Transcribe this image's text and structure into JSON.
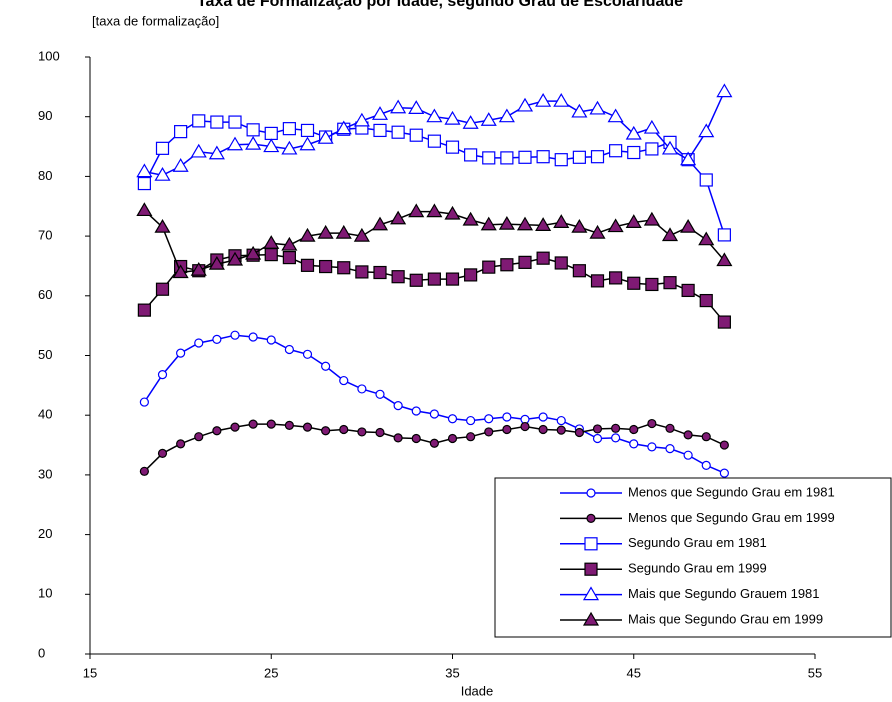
{
  "chart_data": {
    "type": "line",
    "title": "Taxa de Formalização por Idade, segundo Grau de Escolaridade",
    "subtitle": "[taxa de formalização]",
    "x_label": "Idade",
    "x": [
      18,
      19,
      20,
      21,
      22,
      23,
      24,
      25,
      26,
      27,
      28,
      29,
      30,
      31,
      32,
      33,
      34,
      35,
      36,
      37,
      38,
      39,
      40,
      41,
      42,
      43,
      44,
      45,
      46,
      47,
      48,
      49,
      50
    ],
    "xlim": [
      15,
      55
    ],
    "xticks": [
      15,
      25,
      35,
      45,
      55
    ],
    "ylim": [
      0,
      100
    ],
    "yticks": [
      0,
      10,
      20,
      30,
      40,
      50,
      60,
      70,
      80,
      90,
      100
    ],
    "legend": "bottom-right",
    "series": [
      {
        "name": "Menos que Segundo Grau em 1981",
        "color": "#0000ff",
        "marker": "circle",
        "fill": "#ffffff",
        "values": [
          42.2,
          46.8,
          50.4,
          52.1,
          52.7,
          53.4,
          53.1,
          52.6,
          51,
          50.2,
          48.2,
          45.8,
          44.4,
          43.5,
          41.6,
          40.7,
          40.2,
          39.4,
          39.1,
          39.4,
          39.7,
          39.3,
          39.7,
          39.1,
          37.7,
          36.1,
          36.2,
          35.2,
          34.7,
          34.4,
          33.3,
          31.6,
          30.3
        ]
      },
      {
        "name": "Menos que Segundo Grau em 1999",
        "color": "#000000",
        "marker": "circle",
        "fill": "#7f1a74",
        "values": [
          30.6,
          33.6,
          35.2,
          36.4,
          37.4,
          38,
          38.5,
          38.5,
          38.3,
          38,
          37.4,
          37.6,
          37.2,
          37.1,
          36.2,
          36.1,
          35.3,
          36.1,
          36.4,
          37.2,
          37.6,
          38.1,
          37.6,
          37.5,
          37.1,
          37.7,
          37.8,
          37.6,
          38.6,
          37.8,
          36.7,
          36.4,
          35
        ]
      },
      {
        "name": "Segundo Grau em 1981",
        "color": "#0000ff",
        "marker": "square",
        "fill": "#ffffff",
        "values": [
          78.8,
          84.7,
          87.5,
          89.3,
          89.1,
          89.1,
          87.8,
          87.2,
          88,
          87.7,
          86.6,
          87.9,
          88.1,
          87.7,
          87.4,
          86.9,
          85.9,
          84.9,
          83.6,
          83.1,
          83.1,
          83.2,
          83.3,
          82.8,
          83.2,
          83.3,
          84.3,
          84,
          84.6,
          85.7,
          82.8,
          79.4,
          70.2
        ]
      },
      {
        "name": "Segundo Grau em 1999",
        "color": "#000000",
        "marker": "square",
        "fill": "#7f1a74",
        "values": [
          57.6,
          61.1,
          64.9,
          64.2,
          66,
          66.7,
          66.8,
          66.9,
          66.4,
          65.1,
          64.9,
          64.7,
          64,
          63.9,
          63.2,
          62.6,
          62.8,
          62.8,
          63.5,
          64.8,
          65.2,
          65.6,
          66.3,
          65.5,
          64.2,
          62.5,
          63,
          62.1,
          61.9,
          62.2,
          60.9,
          59.2,
          55.6
        ]
      },
      {
        "name": "Mais que Segundo Grauem 1981",
        "color": "#0000ff",
        "marker": "triangle",
        "fill": "#ffffff",
        "values": [
          80.8,
          80.2,
          81.7,
          84.1,
          83.8,
          85.3,
          85.4,
          85,
          84.6,
          85.3,
          86.4,
          88,
          89.3,
          90.4,
          91.5,
          91.4,
          90,
          89.6,
          88.9,
          89.4,
          90,
          91.8,
          92.6,
          92.6,
          90.8,
          91.3,
          90,
          87.1,
          88.1,
          84.6,
          82.8,
          87.5,
          94.2
        ]
      },
      {
        "name": "Mais que Segundo Grau em 1999",
        "color": "#000000",
        "marker": "triangle",
        "fill": "#7f1a74",
        "values": [
          74.3,
          71.5,
          63.9,
          64.3,
          65.3,
          66,
          67,
          68.8,
          68.5,
          70,
          70.5,
          70.5,
          70,
          71.9,
          72.9,
          74.1,
          74.1,
          73.7,
          72.7,
          71.9,
          72,
          71.9,
          71.8,
          72.3,
          71.5,
          70.5,
          71.6,
          72.3,
          72.7,
          70.1,
          71.5,
          69.4,
          65.9
        ]
      }
    ]
  }
}
